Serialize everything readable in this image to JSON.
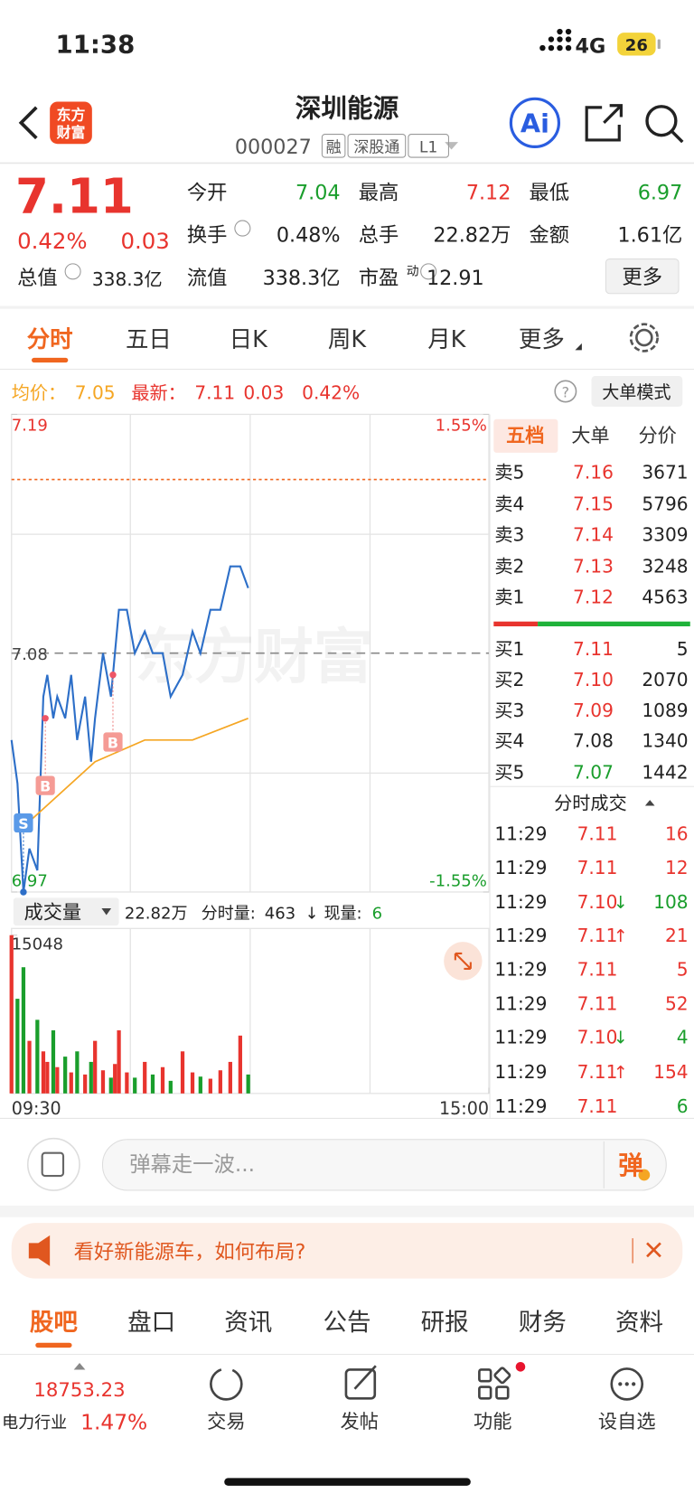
{
  "status": {
    "time": "11:38",
    "network": "4G",
    "battery": "26"
  },
  "header": {
    "logo": [
      "东方",
      "财富"
    ],
    "title": "深圳能源",
    "code": "000027",
    "badges": [
      "融",
      "深股通",
      "L1"
    ],
    "ai": "Ai"
  },
  "quote": {
    "price": "7.11",
    "change_pct": "0.42%",
    "change": "0.03",
    "rows": [
      [
        {
          "label": "今开",
          "value": "7.04",
          "color": "green"
        },
        {
          "label": "最高",
          "value": "7.12",
          "color": "red"
        },
        {
          "label": "最低",
          "value": "6.97",
          "color": "green"
        }
      ],
      [
        {
          "label": "换手",
          "value": "0.48%",
          "info": true
        },
        {
          "label": "总手",
          "value": "22.82万"
        },
        {
          "label": "金额",
          "value": "1.61亿"
        }
      ],
      [
        {
          "label": "流值",
          "value": "338.3亿"
        },
        {
          "label": "市盈",
          "sup": "动",
          "value": "12.91",
          "info": true
        }
      ]
    ],
    "total": {
      "label": "总值",
      "value": "338.3亿"
    },
    "more": "更多"
  },
  "tabs": {
    "items": [
      "分时",
      "五日",
      "日K",
      "周K",
      "月K",
      "更多"
    ],
    "active": 0
  },
  "legend": {
    "avg_label": "均价：",
    "avg": "7.05",
    "last_label": "最新：",
    "last": "7.11",
    "change": "0.03",
    "change_pct": "0.42%",
    "mode": "大单模式"
  },
  "chart_data": [
    {
      "type": "line",
      "xlim": [
        0,
        240
      ],
      "xticks": [
        {
          "value": 0,
          "label": "09:30"
        },
        {
          "value": 240,
          "label": "15:00"
        }
      ],
      "ylim": [
        6.97,
        7.19
      ],
      "yticks": [
        7.19,
        6.97
      ],
      "y2lim": [
        -1.55,
        1.55
      ],
      "y2ticks": [
        {
          "value": 1.55,
          "label": "1.55%"
        },
        {
          "value": -1.55,
          "label": "-1.55%"
        }
      ],
      "prev_close": 7.08,
      "ref_line": 7.16,
      "watermark": "东方财富",
      "x": [
        0,
        3,
        6,
        9,
        13,
        16,
        18,
        21,
        23,
        27,
        30,
        33,
        37,
        40,
        42,
        46,
        50,
        52,
        54,
        58,
        62,
        67,
        71,
        76,
        80,
        86,
        91,
        95,
        100,
        105,
        110,
        115,
        119
      ],
      "series": [
        {
          "color": "#2d6fc8",
          "values": [
            7.04,
            7.02,
            6.97,
            6.99,
            6.98,
            7.06,
            7.07,
            7.05,
            7.06,
            7.05,
            7.07,
            7.04,
            7.06,
            7.03,
            7.05,
            7.08,
            7.06,
            7.08,
            7.1,
            7.1,
            7.08,
            7.09,
            7.08,
            7.08,
            7.06,
            7.07,
            7.09,
            7.08,
            7.1,
            7.1,
            7.12,
            7.12,
            7.11
          ]
        },
        {
          "color": "#f5a623",
          "x": [
            6,
            18,
            42,
            67,
            91,
            119
          ],
          "values": [
            7.0,
            7.01,
            7.03,
            7.04,
            7.04,
            7.05
          ]
        }
      ],
      "markers": [
        {
          "label": "S",
          "x": 6,
          "price": 6.97
        },
        {
          "label": "B",
          "x": 17,
          "price": 7.05
        },
        {
          "label": "B",
          "x": 51,
          "price": 7.07
        }
      ]
    },
    {
      "type": "bar",
      "label": "成交量",
      "total": "22.82万",
      "period_label": "分时量:",
      "period": "463",
      "period_arrow": "↓",
      "now_label": "现量:",
      "now": "6",
      "ylim": [
        0,
        15048
      ],
      "yticks": [
        15048
      ],
      "up_color": "#e8342e",
      "down_color": "#1a9e2c",
      "x": [
        0,
        3,
        6,
        9,
        13,
        16,
        18,
        21,
        23,
        27,
        30,
        33,
        37,
        40,
        42,
        46,
        50,
        52,
        54,
        58,
        62,
        67,
        71,
        76,
        80,
        86,
        91,
        95,
        100,
        105,
        110,
        115,
        119
      ],
      "values": [
        15048,
        9000,
        12000,
        5000,
        7000,
        4000,
        3000,
        6000,
        2500,
        3500,
        2000,
        4000,
        1800,
        3000,
        5000,
        2200,
        1500,
        2800,
        6000,
        2000,
        1500,
        3000,
        1800,
        2500,
        1200,
        4000,
        2000,
        1600,
        1400,
        2200,
        3000,
        5500,
        1800
      ]
    }
  ],
  "order_book": {
    "tabs": [
      "五档",
      "大单",
      "分价"
    ],
    "asks": [
      {
        "label": "卖5",
        "price": "7.16",
        "qty": "3671"
      },
      {
        "label": "卖4",
        "price": "7.15",
        "qty": "5796"
      },
      {
        "label": "卖3",
        "price": "7.14",
        "qty": "3309"
      },
      {
        "label": "卖2",
        "price": "7.13",
        "qty": "3248"
      },
      {
        "label": "卖1",
        "price": "7.12",
        "qty": "4563"
      }
    ],
    "bids": [
      {
        "label": "买1",
        "price": "7.11",
        "qty": "5"
      },
      {
        "label": "买2",
        "price": "7.10",
        "qty": "2070"
      },
      {
        "label": "买3",
        "price": "7.09",
        "qty": "1089"
      },
      {
        "label": "买4",
        "price": "7.08",
        "qty": "1340"
      },
      {
        "label": "买5",
        "price": "7.07",
        "qty": "1442"
      }
    ],
    "trades_title": "分时成交",
    "trades": [
      {
        "time": "11:29",
        "price": "7.11",
        "qty": "16",
        "qty_color": "red"
      },
      {
        "time": "11:29",
        "price": "7.11",
        "qty": "12",
        "qty_color": "red"
      },
      {
        "time": "11:29",
        "price": "7.10",
        "arrow": "↓",
        "qty": "108",
        "qty_color": "green"
      },
      {
        "time": "11:29",
        "price": "7.11",
        "arrow": "↑",
        "qty": "21",
        "qty_color": "red"
      },
      {
        "time": "11:29",
        "price": "7.11",
        "qty": "5",
        "qty_color": "red"
      },
      {
        "time": "11:29",
        "price": "7.11",
        "qty": "52",
        "qty_color": "red"
      },
      {
        "time": "11:29",
        "price": "7.10",
        "arrow": "↓",
        "qty": "4",
        "qty_color": "green"
      },
      {
        "time": "11:29",
        "price": "7.11",
        "arrow": "↑",
        "qty": "154",
        "qty_color": "red"
      },
      {
        "time": "11:29",
        "price": "7.11",
        "qty": "6",
        "qty_color": "green"
      }
    ]
  },
  "comment": {
    "placeholder": "弹幕走一波...",
    "send": "弹"
  },
  "banner": {
    "text": "看好新能源车，如何布局?"
  },
  "bottom_tabs": {
    "items": [
      "股吧",
      "盘口",
      "资讯",
      "公告",
      "研报",
      "财务",
      "资料"
    ],
    "active": 0
  },
  "nav": {
    "index": "18753.23",
    "industry": "电力行业",
    "industry_pct": "1.47%",
    "items": [
      "交易",
      "发帖",
      "功能",
      "设自选"
    ]
  }
}
